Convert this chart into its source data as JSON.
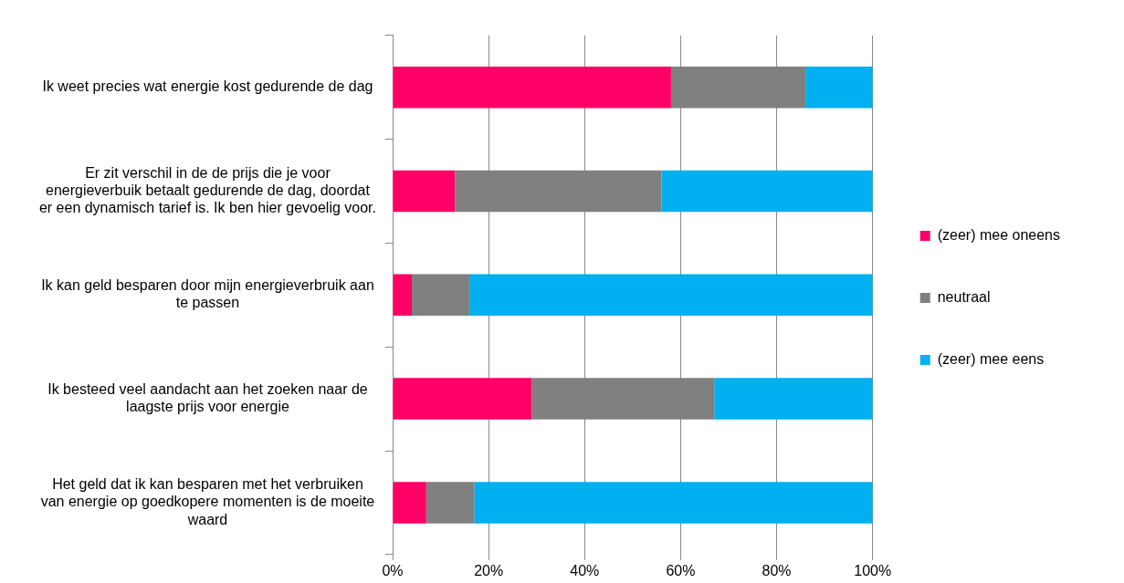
{
  "chart_data": {
    "type": "bar",
    "orientation": "horizontal",
    "stacked": true,
    "categories": [
      "Ik weet precies wat energie kost gedurende de dag",
      "Er zit verschil in de de prijs die je voor energieverbuik betaalt gedurende de dag, doordat er een dynamisch tarief is. Ik ben hier gevoelig voor.",
      "Ik kan geld besparen door mijn energieverbruik aan te passen",
      "Ik besteed veel aandacht aan het zoeken naar de laagste prijs voor energie",
      "Het geld dat ik kan besparen met het verbruiken van energie op goedkopere momenten is de moeite waard"
    ],
    "series": [
      {
        "name": "(zeer) mee oneens",
        "color": "#ff0066",
        "values": [
          58,
          13,
          4,
          29,
          7
        ]
      },
      {
        "name": "neutraal",
        "color": "#808080",
        "values": [
          28,
          43,
          12,
          38,
          10
        ]
      },
      {
        "name": "(zeer) mee eens",
        "color": "#00b0f0",
        "values": [
          14,
          44,
          84,
          33,
          83
        ]
      }
    ],
    "xlim": [
      0,
      100
    ],
    "xticks": [
      {
        "value": 0,
        "label": "0%"
      },
      {
        "value": 20,
        "label": "20%"
      },
      {
        "value": 40,
        "label": "40%"
      },
      {
        "value": 60,
        "label": "60%"
      },
      {
        "value": 80,
        "label": "80%"
      },
      {
        "value": 100,
        "label": "100%"
      }
    ],
    "grid": "x",
    "legend": "right"
  }
}
